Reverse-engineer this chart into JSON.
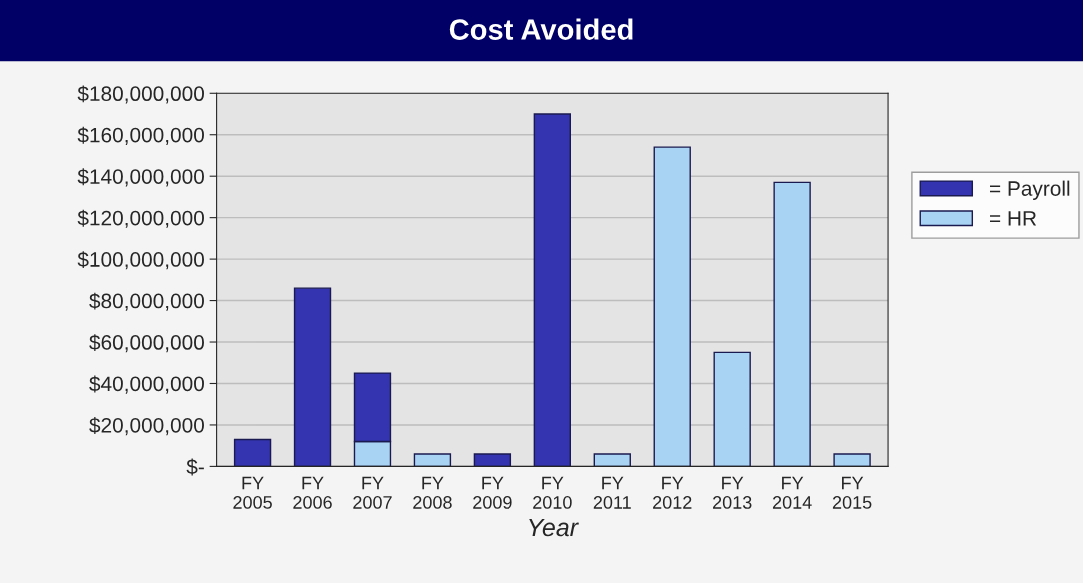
{
  "chart_data": {
    "type": "bar",
    "title": "Cost Avoided",
    "xlabel": "Year",
    "stacked": true,
    "grid": "y",
    "legend": "right",
    "categories": [
      "FY\n2005",
      "FY\n2006",
      "FY\n2007",
      "FY\n2008",
      "FY\n2009",
      "FY\n2010",
      "FY\n2011",
      "FY\n2012",
      "FY\n2013",
      "FY\n2014",
      "FY\n2015"
    ],
    "series": [
      {
        "name": "= HR",
        "color": "#a9d3f2",
        "values": [
          null,
          null,
          12000000,
          6000000,
          null,
          null,
          6000000,
          154000000,
          55000000,
          137000000,
          6000000
        ]
      },
      {
        "name": "= Payroll",
        "color": "#3434b0",
        "values": [
          13000000,
          86000000,
          33000000,
          null,
          6000000,
          170000000,
          null,
          null,
          null,
          null,
          null
        ]
      }
    ],
    "ylim": [
      0,
      180000000
    ],
    "yticks": [
      {
        "value": 0,
        "label": "$-"
      },
      {
        "value": 20000000,
        "label": "$20,000,000"
      },
      {
        "value": 40000000,
        "label": "$40,000,000"
      },
      {
        "value": 60000000,
        "label": "$60,000,000"
      },
      {
        "value": 80000000,
        "label": "$80,000,000"
      },
      {
        "value": 100000000,
        "label": "$100,000,000"
      },
      {
        "value": 120000000,
        "label": "$120,000,000"
      },
      {
        "value": 140000000,
        "label": "$140,000,000"
      },
      {
        "value": 160000000,
        "label": "$160,000,000"
      },
      {
        "value": 180000000,
        "label": "$180,000,000"
      }
    ]
  }
}
